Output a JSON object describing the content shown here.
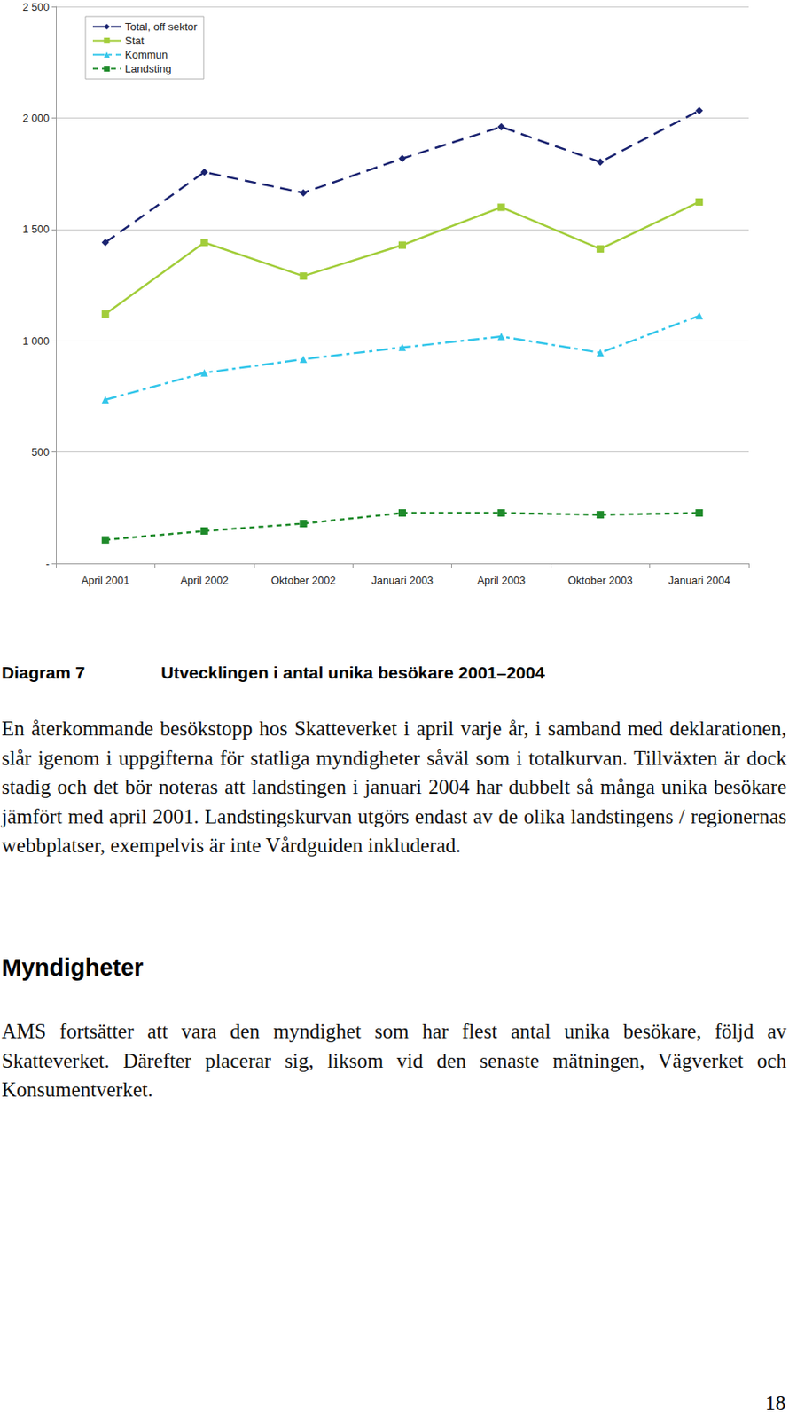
{
  "chart_data": {
    "type": "line",
    "categories": [
      "April 2001",
      "April 2002",
      "Oktober 2002",
      "Januari 2003",
      "April 2003",
      "Oktober 2003",
      "Januari 2004"
    ],
    "series": [
      {
        "name": "Total, off sektor",
        "color": "#1a2370",
        "marker": "diamond",
        "line_style": "dashed",
        "values": [
          1441,
          1757,
          1664,
          1818,
          1960,
          1802,
          2033
        ]
      },
      {
        "name": "Stat",
        "color": "#a2cd3a",
        "marker": "square",
        "line_style": "solid",
        "values": [
          1120,
          1441,
          1290,
          1429,
          1599,
          1412,
          1623
        ]
      },
      {
        "name": "Kommun",
        "color": "#33c6ea",
        "marker": "triangle",
        "line_style": "dashdot",
        "values": [
          735,
          856,
          917,
          970,
          1019,
          946,
          1112
        ]
      },
      {
        "name": "Landsting",
        "color": "#1e8a2a",
        "marker": "square",
        "line_style": "dotted",
        "values": [
          106,
          146,
          179,
          227,
          227,
          219,
          227
        ]
      }
    ],
    "ylim": [
      0,
      2500
    ],
    "yticks": [
      {
        "value": 0,
        "label": "-"
      },
      500,
      {
        "value": 1000,
        "label": "1 000"
      },
      {
        "value": 1500,
        "label": "1 500"
      },
      {
        "value": 2000,
        "label": "2 000"
      },
      {
        "value": 2500,
        "label": "2 500"
      }
    ],
    "grid": true,
    "legend": "upper left"
  },
  "caption": {
    "label": "Diagram 7",
    "title": "Utvecklingen i antal unika besökare 2001–2004",
    "text": "En återkommande besökstopp hos Skatteverket i april varje år, i samband med deklarationen, slår igenom i uppgifterna för statliga myndigheter såväl som i totalkurvan. Tillväxten är dock stadig och det bör noteras att landstingen i januari 2004 har dubbelt så många unika besökare jämfört med april 2001. Landstingskurvan utgörs endast av de olika landstingens / regionernas webbplatser, exempelvis är inte Vårdguiden inkluderad."
  },
  "section": {
    "heading": "Myndigheter",
    "text": "AMS fortsätter att vara den myndighet som har flest antal unika besökare, följd av Skatteverket. Därefter placerar sig, liksom vid den senaste mätningen, Vägverket och Konsumentverket."
  },
  "page_number": "18"
}
